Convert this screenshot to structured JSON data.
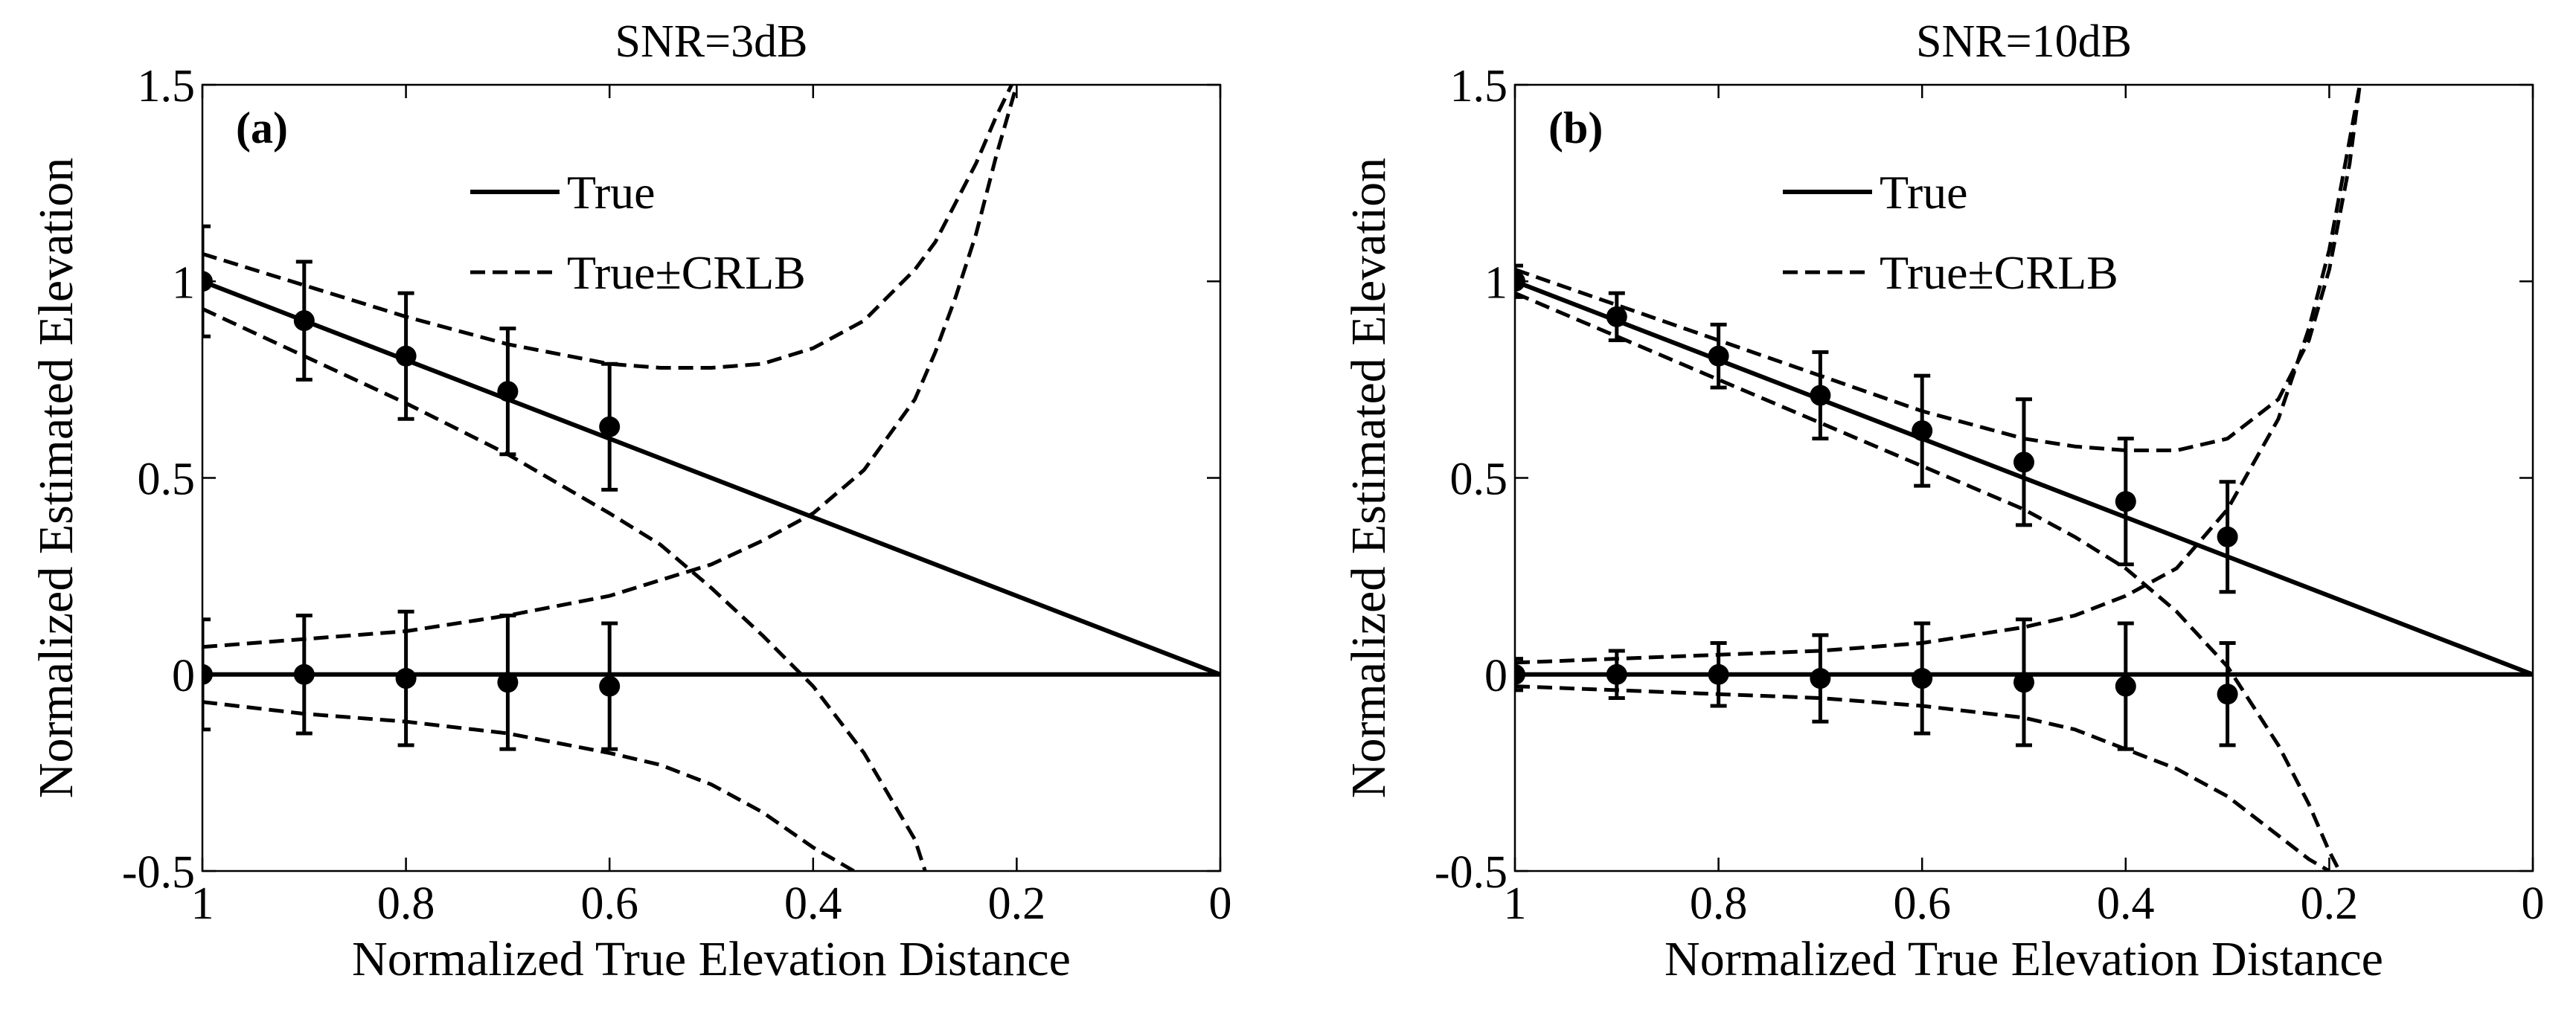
{
  "chart_data": [
    {
      "panel": "(a)",
      "type": "line",
      "title": "SNR=3dB",
      "xlabel": "Normalized True Elevation Distance",
      "ylabel": "Normalized Estimated Elevation",
      "xlim": [
        1,
        0
      ],
      "ylim": [
        -0.5,
        1.5
      ],
      "xticks": [
        "1",
        "0.8",
        "0.6",
        "0.4",
        "0.2",
        "0"
      ],
      "yticks": [
        "-0.5",
        "0",
        "0.5",
        "1",
        "1.5"
      ],
      "legend": {
        "position": "top-center",
        "entries": [
          "True",
          "True±CRLB"
        ]
      },
      "series": [
        {
          "name": "True",
          "style": "solid",
          "x": [
            1,
            0
          ],
          "y": [
            1,
            0
          ]
        },
        {
          "name": "True",
          "style": "solid",
          "x": [
            1,
            0
          ],
          "y": [
            0,
            0
          ]
        },
        {
          "name": "True+CRLB (upper)",
          "style": "dashed",
          "x": [
            1,
            0.9,
            0.8,
            0.7,
            0.6,
            0.55,
            0.5,
            0.45,
            0.4,
            0.35,
            0.3,
            0.28,
            0.26,
            0.24,
            0.22,
            0.205
          ],
          "y": [
            1.07,
            0.99,
            0.91,
            0.84,
            0.79,
            0.78,
            0.78,
            0.79,
            0.83,
            0.9,
            1.03,
            1.1,
            1.2,
            1.3,
            1.42,
            1.5
          ]
        },
        {
          "name": "True-CRLB (upper)",
          "style": "dashed",
          "x": [
            1,
            0.9,
            0.8,
            0.7,
            0.6,
            0.55,
            0.5,
            0.45,
            0.4,
            0.35,
            0.3,
            0.29
          ],
          "y": [
            0.93,
            0.81,
            0.69,
            0.56,
            0.41,
            0.33,
            0.22,
            0.1,
            -0.03,
            -0.2,
            -0.42,
            -0.5
          ]
        },
        {
          "name": "True+CRLB (lower)",
          "style": "dashed",
          "x": [
            1,
            0.9,
            0.8,
            0.7,
            0.6,
            0.55,
            0.5,
            0.45,
            0.4,
            0.35,
            0.3,
            0.28,
            0.26,
            0.24,
            0.22,
            0.2
          ],
          "y": [
            0.07,
            0.09,
            0.11,
            0.15,
            0.2,
            0.24,
            0.28,
            0.34,
            0.41,
            0.52,
            0.7,
            0.82,
            0.96,
            1.12,
            1.32,
            1.5
          ]
        },
        {
          "name": "True-CRLB (lower)",
          "style": "dashed",
          "x": [
            1,
            0.9,
            0.8,
            0.7,
            0.6,
            0.55,
            0.5,
            0.45,
            0.4,
            0.38,
            0.36
          ],
          "y": [
            -0.07,
            -0.1,
            -0.12,
            -0.15,
            -0.2,
            -0.23,
            -0.28,
            -0.35,
            -0.44,
            -0.47,
            -0.5
          ]
        },
        {
          "name": "Estimate (upper)",
          "style": "errorbar",
          "x": [
            1,
            0.9,
            0.8,
            0.7,
            0.6
          ],
          "y": [
            1.0,
            0.9,
            0.81,
            0.72,
            0.63
          ],
          "err": [
            0.14,
            0.15,
            0.16,
            0.16,
            0.16
          ]
        },
        {
          "name": "Estimate (lower)",
          "style": "errorbar",
          "x": [
            1,
            0.9,
            0.8,
            0.7,
            0.6
          ],
          "y": [
            0.0,
            0.0,
            -0.01,
            -0.02,
            -0.03
          ],
          "err": [
            0.14,
            0.15,
            0.17,
            0.17,
            0.16
          ]
        }
      ]
    },
    {
      "panel": "(b)",
      "type": "line",
      "title": "SNR=10dB",
      "xlabel": "Normalized True Elevation Distance",
      "ylabel": "Normalized Estimated Elevation",
      "xlim": [
        1,
        0
      ],
      "ylim": [
        -0.5,
        1.5
      ],
      "xticks": [
        "1",
        "0.8",
        "0.6",
        "0.4",
        "0.2",
        "0"
      ],
      "yticks": [
        "-0.5",
        "0",
        "0.5",
        "1",
        "1.5"
      ],
      "legend": {
        "position": "top-center",
        "entries": [
          "True",
          "True±CRLB"
        ]
      },
      "series": [
        {
          "name": "True",
          "style": "solid",
          "x": [
            1,
            0
          ],
          "y": [
            1,
            0
          ]
        },
        {
          "name": "True",
          "style": "solid",
          "x": [
            1,
            0
          ],
          "y": [
            0,
            0
          ]
        },
        {
          "name": "True+CRLB (upper)",
          "style": "dashed",
          "x": [
            1,
            0.9,
            0.8,
            0.7,
            0.6,
            0.5,
            0.45,
            0.4,
            0.35,
            0.3,
            0.25,
            0.22,
            0.2,
            0.18,
            0.17
          ],
          "y": [
            1.03,
            0.94,
            0.85,
            0.76,
            0.67,
            0.6,
            0.58,
            0.57,
            0.57,
            0.6,
            0.7,
            0.85,
            1.03,
            1.3,
            1.5
          ]
        },
        {
          "name": "True-CRLB (upper)",
          "style": "dashed",
          "x": [
            1,
            0.9,
            0.8,
            0.7,
            0.6,
            0.5,
            0.45,
            0.4,
            0.35,
            0.3,
            0.25,
            0.22,
            0.2,
            0.19
          ],
          "y": [
            0.97,
            0.86,
            0.75,
            0.64,
            0.53,
            0.42,
            0.35,
            0.27,
            0.16,
            0.02,
            -0.18,
            -0.33,
            -0.45,
            -0.5
          ]
        },
        {
          "name": "True+CRLB (lower)",
          "style": "dashed",
          "x": [
            1,
            0.9,
            0.8,
            0.7,
            0.6,
            0.5,
            0.45,
            0.4,
            0.35,
            0.3,
            0.25,
            0.22,
            0.2,
            0.18,
            0.17
          ],
          "y": [
            0.03,
            0.04,
            0.05,
            0.06,
            0.08,
            0.12,
            0.15,
            0.2,
            0.27,
            0.42,
            0.65,
            0.88,
            1.08,
            1.36,
            1.5
          ]
        },
        {
          "name": "True-CRLB (lower)",
          "style": "dashed",
          "x": [
            1,
            0.9,
            0.8,
            0.7,
            0.6,
            0.5,
            0.45,
            0.4,
            0.35,
            0.3,
            0.25,
            0.22,
            0.2
          ],
          "y": [
            -0.03,
            -0.04,
            -0.05,
            -0.06,
            -0.08,
            -0.11,
            -0.14,
            -0.19,
            -0.24,
            -0.31,
            -0.41,
            -0.47,
            -0.5
          ]
        },
        {
          "name": "Estimate (upper)",
          "style": "errorbar",
          "x": [
            1,
            0.9,
            0.8,
            0.7,
            0.6,
            0.5,
            0.4,
            0.3
          ],
          "y": [
            1.0,
            0.91,
            0.81,
            0.71,
            0.62,
            0.54,
            0.44,
            0.35
          ],
          "err": [
            0.04,
            0.06,
            0.08,
            0.11,
            0.14,
            0.16,
            0.16,
            0.14
          ]
        },
        {
          "name": "Estimate (lower)",
          "style": "errorbar",
          "x": [
            1,
            0.9,
            0.8,
            0.7,
            0.6,
            0.5,
            0.4,
            0.3
          ],
          "y": [
            0.0,
            0.0,
            0.0,
            -0.01,
            -0.01,
            -0.02,
            -0.03,
            -0.05
          ],
          "err": [
            0.04,
            0.06,
            0.08,
            0.11,
            0.14,
            0.16,
            0.16,
            0.13
          ]
        }
      ]
    }
  ]
}
